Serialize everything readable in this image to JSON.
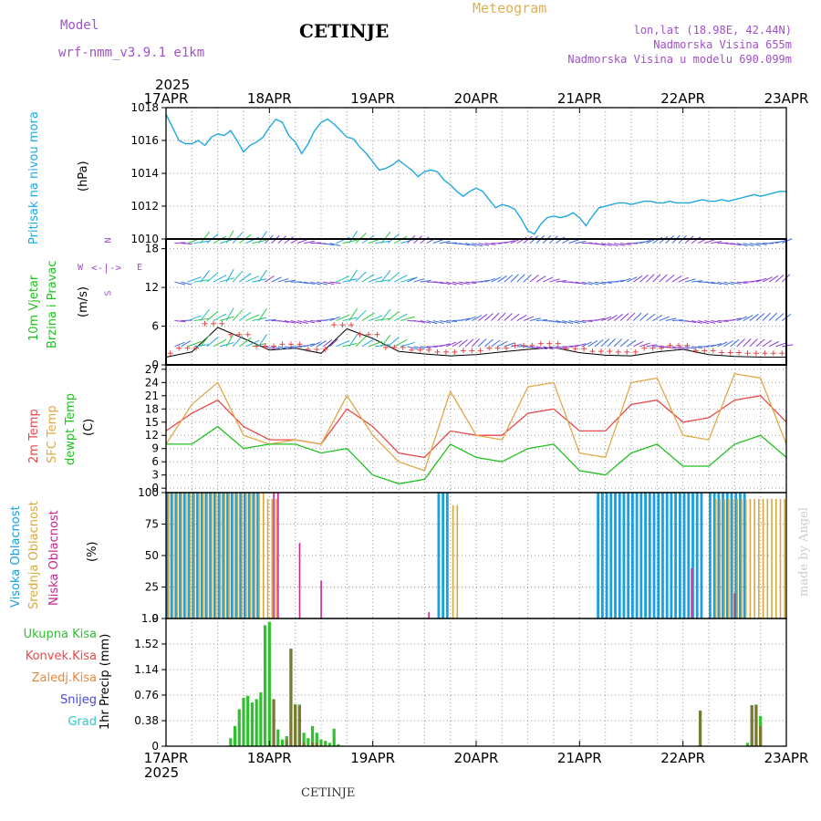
{
  "header": {
    "model_label": "Model",
    "model_value": "wrf-nmm_v3.9.1 e1km",
    "title": "CETINJE",
    "meteogram": "Meteogram",
    "lonlat": "lon,lat (18.98E, 42.44N)",
    "altitude": "Nadmorska Visina 655m",
    "altitude_model": "Nadmorska Visina u modelu 690.099m"
  },
  "top_year": "2025",
  "bottom_year": "2025",
  "footer_station": "CETINJE",
  "made_by": "made by Angel",
  "colors": {
    "pressure": "#20a8e0",
    "temp2m": "#e84848",
    "sfc": "#e0a848",
    "dewpt": "#20c020",
    "high_cloud": "#18a0e0",
    "mid_cloud": "#d8a840",
    "low_cloud": "#c8288c",
    "total_precip": "#30c030",
    "conv_precip": "#e84848",
    "frozen_precip": "#e88838",
    "snow": "#4848e0",
    "hail": "#30c8c8"
  },
  "chart_data": [
    {
      "type": "line",
      "panel": "pressure",
      "ylabel": "Pritisak na nivou mora",
      "unit": "(hPa)",
      "x": [
        0,
        1.5,
        3,
        4.5,
        6,
        7.5,
        9,
        10.5,
        12,
        13.5,
        15,
        16.5,
        18,
        19.5,
        21,
        22.5,
        24,
        25.5,
        27,
        28.5,
        30,
        31.5,
        33,
        34.5,
        36,
        37.5,
        39,
        40.5,
        42,
        43.5,
        45,
        46.5,
        48,
        49.5,
        51,
        52.5,
        54,
        55.5,
        57,
        58.5,
        60,
        61.5,
        63,
        64.5,
        66,
        67.5,
        69,
        70.5,
        72,
        73.5,
        75,
        76.5,
        78,
        79.5,
        81,
        82.5,
        84,
        85.5,
        87,
        88.5,
        90,
        91.5,
        93,
        94.5,
        96,
        97.5,
        99,
        100.5,
        102,
        103.5,
        105,
        106.5,
        108,
        109.5,
        111,
        112.5,
        114,
        115.5,
        117,
        118.5,
        120,
        121.5,
        123,
        124.5,
        126,
        127.5,
        129,
        130.5,
        132,
        133.5,
        135,
        136.5,
        138,
        139.5,
        141,
        142.5,
        144
      ],
      "series": [
        {
          "values": [
            1017.6,
            1016.8,
            1016.0,
            1015.8,
            1015.8,
            1016.0,
            1015.7,
            1016.2,
            1016.4,
            1016.3,
            1016.6,
            1016.0,
            1015.3,
            1015.7,
            1015.9,
            1016.2,
            1016.8,
            1017.3,
            1017.1,
            1016.3,
            1015.9,
            1015.2,
            1015.8,
            1016.6,
            1017.1,
            1017.3,
            1017.0,
            1016.6,
            1016.2,
            1016.1,
            1015.6,
            1015.2,
            1014.7,
            1014.2,
            1014.3,
            1014.5,
            1014.8,
            1014.5,
            1014.2,
            1013.8,
            1014.1,
            1014.2,
            1014.1,
            1013.6,
            1013.3,
            1012.9,
            1012.6,
            1012.9,
            1013.1,
            1012.9,
            1012.4,
            1011.9,
            1012.1,
            1012.0,
            1011.8,
            1011.2,
            1010.5,
            1010.3,
            1010.9,
            1011.3,
            1011.4,
            1011.3,
            1011.4,
            1011.6,
            1011.3,
            1010.8,
            1011.4,
            1011.9,
            1012.0,
            1012.1,
            1012.2,
            1012.2,
            1012.1,
            1012.2,
            1012.3,
            1012.3,
            1012.2,
            1012.2,
            1012.3,
            1012.2,
            1012.2,
            1012.2,
            1012.3,
            1012.4,
            1012.3,
            1012.3,
            1012.4,
            1012.3,
            1012.4,
            1012.5,
            1012.6,
            1012.7,
            1012.6,
            1012.7,
            1012.8,
            1012.9,
            1012.9
          ]
        }
      ],
      "ylim": [
        1010,
        1018
      ],
      "yticks": [
        1010,
        1012,
        1014,
        1016,
        1018
      ]
    },
    {
      "type": "scatter",
      "panel": "wind",
      "ylabel": "10m Vjetar Brzina i Pravac",
      "unit": "(m/s)",
      "compass": {
        "n": "N",
        "w": "W",
        "e": "E",
        "s": "S"
      },
      "ylim": [
        0,
        19.5
      ],
      "yticks": [
        0,
        6,
        12,
        18
      ],
      "x": [
        0,
        6,
        12,
        18,
        24,
        30,
        36,
        42,
        48,
        54,
        60,
        66,
        72,
        78,
        84,
        90,
        96,
        102,
        108,
        114,
        120,
        126,
        132,
        138,
        144
      ],
      "speed": [
        1.2,
        2.0,
        5.8,
        4.1,
        2.3,
        2.6,
        1.8,
        5.6,
        4.1,
        2.1,
        1.7,
        1.4,
        1.6,
        2.0,
        2.4,
        2.7,
        1.9,
        1.5,
        1.4,
        2.0,
        2.4,
        1.6,
        1.3,
        1.2,
        1.2
      ]
    },
    {
      "type": "line",
      "panel": "temperature",
      "ylabel": "2m Temp / SFC Temp / dewpt Temp",
      "unit": "(C)",
      "ylim": [
        -1,
        28
      ],
      "yticks": [
        0,
        3,
        6,
        9,
        12,
        15,
        18,
        21,
        24,
        27
      ],
      "x": [
        0,
        6,
        12,
        18,
        24,
        30,
        36,
        42,
        48,
        54,
        60,
        66,
        72,
        78,
        84,
        90,
        96,
        102,
        108,
        114,
        120,
        126,
        132,
        138,
        144
      ],
      "series": [
        {
          "name": "2m Temp",
          "values": [
            13,
            17,
            20,
            14,
            11,
            11,
            10,
            18,
            14,
            8,
            7,
            13,
            12,
            12,
            17,
            18,
            13,
            13,
            19,
            20,
            15,
            16,
            20,
            21,
            15
          ]
        },
        {
          "name": "SFC Temp",
          "values": [
            10,
            19,
            24,
            12,
            10,
            11,
            10,
            21,
            12,
            6,
            4,
            22,
            12,
            11,
            23,
            24,
            8,
            7,
            24,
            25,
            12,
            11,
            26,
            25,
            10
          ]
        },
        {
          "name": "dewpt Temp",
          "values": [
            10,
            10,
            14,
            9,
            10,
            10,
            8,
            9,
            3,
            1,
            2,
            10,
            7,
            6,
            9,
            10,
            4,
            3,
            8,
            10,
            5,
            5,
            10,
            12,
            7
          ]
        }
      ]
    },
    {
      "type": "bar",
      "panel": "cloud",
      "ylabel": "Visoka Oblacnost / Srednja Oblacnost / Niska Oblacnost",
      "unit": "(%)",
      "ylim": [
        0,
        100
      ],
      "yticks": [
        0,
        25,
        50,
        75,
        100
      ],
      "series": [
        {
          "name": "Visoka Oblacnost",
          "hours": [
            [
              0,
              22,
              100
            ],
            [
              63,
              66,
              100
            ],
            [
              100,
              125,
              100
            ],
            [
              126,
              135,
              100
            ]
          ]
        },
        {
          "name": "Srednja Oblacnost",
          "hours": [
            [
              0,
              23,
              100
            ],
            [
              23,
              26,
              95
            ],
            [
              66,
              68,
              90
            ],
            [
              127,
              144,
              95
            ]
          ]
        },
        {
          "name": "Niska Oblacnost",
          "hours": [
            [
              24,
              26,
              100
            ],
            [
              30,
              30.5,
              60
            ],
            [
              35,
              35.5,
              30
            ],
            [
              60,
              60.5,
              5
            ],
            [
              121,
              121.5,
              40
            ],
            [
              131,
              131.5,
              20
            ]
          ]
        }
      ]
    },
    {
      "type": "bar",
      "panel": "precip",
      "ylabel": "1hr Precip",
      "unit": "(mm)",
      "ylim": [
        0,
        1.9
      ],
      "yticks": [
        0,
        0.38,
        0.76,
        1.14,
        1.52,
        1.9
      ],
      "ytick_labels": [
        "0",
        "0.38",
        "0.76",
        "1.14",
        "1.52",
        "1.9"
      ],
      "legend": [
        "Ukupna Kisa",
        "Konvek.Kisa",
        "Zaledj.Kisa",
        "Snijeg",
        "Grad"
      ],
      "x": [
        15,
        16,
        17,
        18,
        19,
        20,
        21,
        22,
        23,
        24,
        25,
        26,
        27,
        28,
        29,
        30,
        31,
        32,
        33,
        34,
        35,
        36,
        37,
        38,
        39,
        40,
        124,
        135,
        136,
        137,
        138
      ],
      "series": [
        {
          "name": "Ukupna Kisa",
          "values": [
            0.12,
            0.3,
            0.55,
            0.72,
            0.75,
            0.65,
            0.7,
            0.8,
            1.8,
            1.85,
            0.7,
            0.25,
            0.1,
            0.15,
            1.45,
            0.62,
            0.62,
            0.2,
            0.12,
            0.3,
            0.2,
            0.1,
            0.08,
            0.05,
            0.26,
            0.03,
            0.53,
            0.05,
            0.61,
            0.62,
            0.45
          ]
        },
        {
          "name": "Konvek.Kisa",
          "values": [
            0,
            0,
            0,
            0,
            0,
            0,
            0,
            0,
            0,
            0,
            0.7,
            0,
            0,
            0.1,
            1.45,
            0.62,
            0.6,
            0.05,
            0,
            0.05,
            0.05,
            0.02,
            0,
            0,
            0,
            0,
            0.53,
            0,
            0.61,
            0.61,
            0.3
          ]
        }
      ]
    }
  ],
  "x_axis": {
    "ticks": [
      "17APR",
      "18APR",
      "19APR",
      "20APR",
      "21APR",
      "22APR",
      "23APR"
    ]
  }
}
